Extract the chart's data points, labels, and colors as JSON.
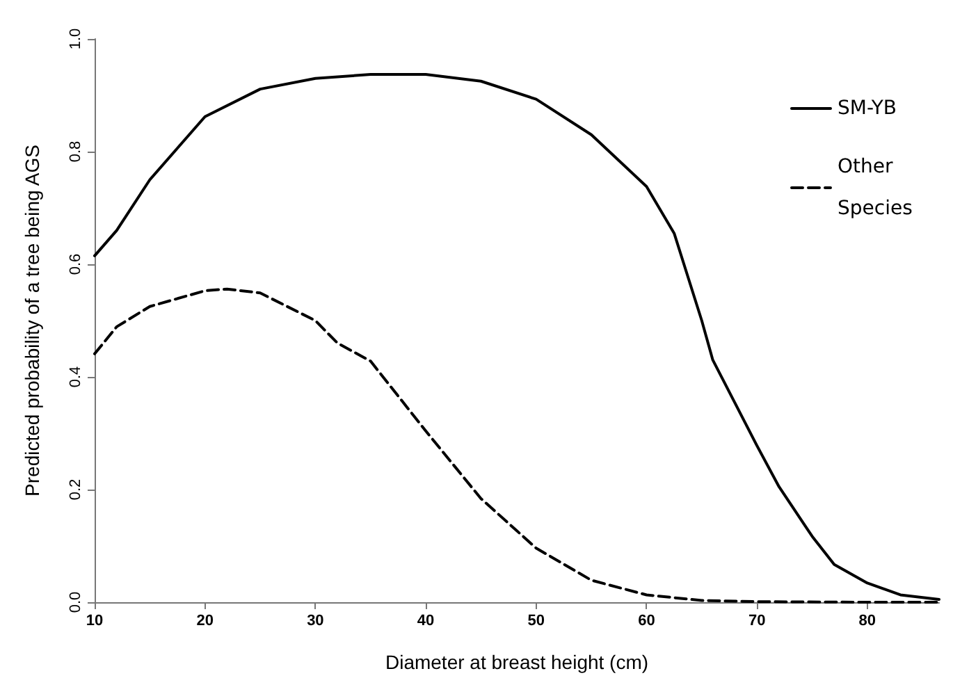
{
  "chart_data": {
    "type": "line",
    "xlabel": "Diameter at breast height (cm)",
    "ylabel": "Predicted probability of a tree being AGS",
    "xlim": [
      10,
      86.5
    ],
    "xticks": [
      10,
      20,
      30,
      40,
      50,
      60,
      70,
      80
    ],
    "ylim": [
      0,
      1
    ],
    "yticks": [
      {
        "value": 0,
        "label": "0.0"
      },
      {
        "value": 0.2,
        "label": "0.2"
      },
      {
        "value": 0.4,
        "label": "0.4"
      },
      {
        "value": 0.6,
        "label": "0.6"
      },
      {
        "value": 0.8,
        "label": "0.8"
      },
      {
        "value": 1,
        "label": "1.0"
      }
    ],
    "grid": false,
    "legend": "top right",
    "marker": "none",
    "series": [
      {
        "name": "SM-YB",
        "color": "#000000",
        "line_style": "solid",
        "x": [
          10,
          12,
          15,
          20,
          25,
          30,
          35,
          40,
          45,
          50,
          55,
          60,
          62.5,
          65,
          66,
          70,
          72,
          75,
          77,
          80,
          83,
          86.5
        ],
        "values": [
          0.615,
          0.66,
          0.75,
          0.862,
          0.911,
          0.93,
          0.937,
          0.937,
          0.925,
          0.893,
          0.83,
          0.738,
          0.655,
          0.5,
          0.43,
          0.278,
          0.205,
          0.117,
          0.067,
          0.034,
          0.013,
          0.005
        ]
      },
      {
        "name": "Other Species",
        "color": "#000000",
        "line_style": "dashed",
        "x": [
          10,
          12,
          15,
          20,
          22,
          25,
          30,
          32,
          35,
          40,
          45,
          50,
          55,
          60,
          65,
          70,
          80,
          86.5
        ],
        "values": [
          0.441,
          0.489,
          0.525,
          0.553,
          0.556,
          0.549,
          0.5,
          0.46,
          0.428,
          0.304,
          0.184,
          0.096,
          0.039,
          0.013,
          0.003,
          0.001,
          0,
          0
        ]
      }
    ]
  }
}
